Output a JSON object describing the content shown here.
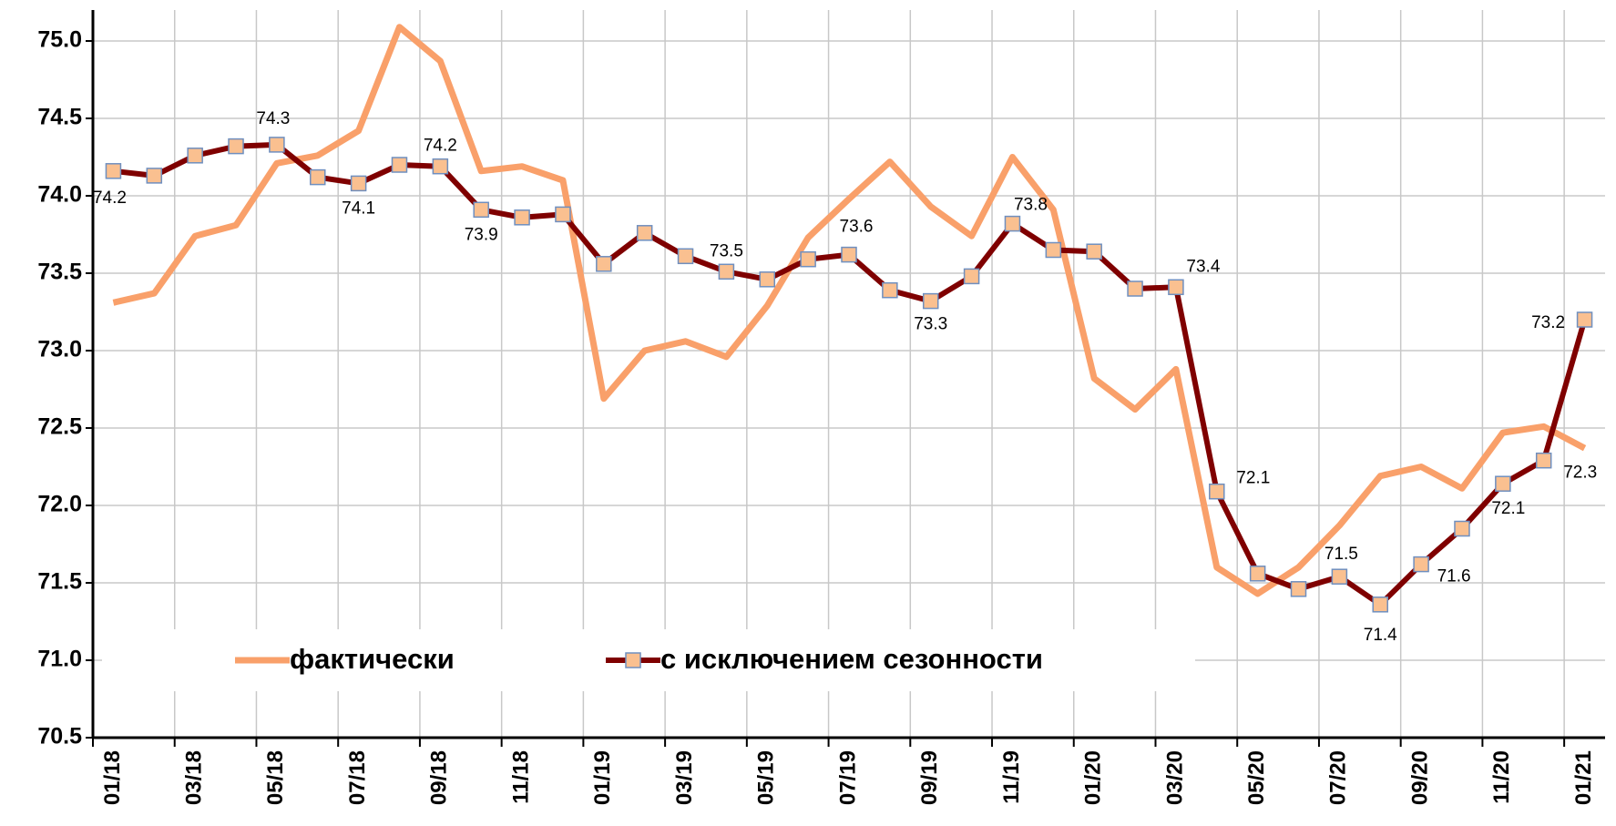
{
  "chart_data": {
    "type": "line",
    "categories": [
      "01/18",
      null,
      "03/18",
      null,
      "05/18",
      null,
      "07/18",
      null,
      "09/18",
      null,
      "11/18",
      null,
      "01/19",
      null,
      "03/19",
      null,
      "05/19",
      null,
      "07/19",
      null,
      "09/19",
      null,
      "11/19",
      null,
      "01/20",
      null,
      "03/20",
      null,
      "05/20",
      null,
      "07/20",
      null,
      "09/20",
      null,
      "11/20",
      null,
      "01/21"
    ],
    "series": [
      {
        "name": "фактически",
        "color": "#f9a06a",
        "values": [
          73.31,
          73.37,
          73.74,
          73.81,
          74.21,
          74.26,
          74.42,
          75.09,
          74.87,
          74.16,
          74.19,
          74.1,
          72.69,
          73.0,
          73.06,
          72.96,
          73.29,
          73.73,
          73.98,
          74.22,
          73.93,
          73.74,
          74.25,
          73.91,
          72.82,
          72.62,
          72.88,
          71.6,
          71.43,
          71.6,
          71.87,
          72.19,
          72.25,
          72.11,
          72.47,
          72.51,
          72.37
        ]
      },
      {
        "name": "с исключением сезонности",
        "color": "#7f0000",
        "marker_fill": "#fac090",
        "marker_edge": "#6f8fbf",
        "values": [
          74.16,
          74.13,
          74.26,
          74.32,
          74.33,
          74.12,
          74.08,
          74.2,
          74.19,
          73.91,
          73.86,
          73.88,
          73.56,
          73.76,
          73.61,
          73.51,
          73.46,
          73.59,
          73.62,
          73.39,
          73.32,
          73.48,
          73.82,
          73.65,
          73.64,
          73.4,
          73.41,
          72.09,
          71.56,
          71.46,
          71.54,
          71.36,
          71.62,
          71.85,
          72.14,
          72.29,
          73.2
        ],
        "value_labels": [
          "74.2",
          null,
          null,
          null,
          "74.3",
          null,
          "74.1",
          null,
          "74.2",
          "73.9",
          null,
          null,
          null,
          null,
          null,
          "73.5",
          null,
          null,
          "73.6",
          null,
          "73.3",
          null,
          "73.8",
          null,
          null,
          null,
          "73.4",
          "72.1",
          null,
          null,
          "71.5",
          "71.4",
          "71.6",
          null,
          "72.1",
          "72.3",
          "73.2"
        ]
      }
    ],
    "ylim": [
      70.5,
      75.2
    ],
    "yticks": [
      70.5,
      {
        "value": 71,
        "label": "71.0"
      },
      71.5,
      {
        "value": 72,
        "label": "72.0"
      },
      72.5,
      {
        "value": 73,
        "label": "73.0"
      },
      73.5,
      {
        "value": 74,
        "label": "74.0"
      },
      74.5,
      {
        "value": 75,
        "label": "75.0"
      }
    ],
    "grid": true,
    "legend": "bottom"
  }
}
